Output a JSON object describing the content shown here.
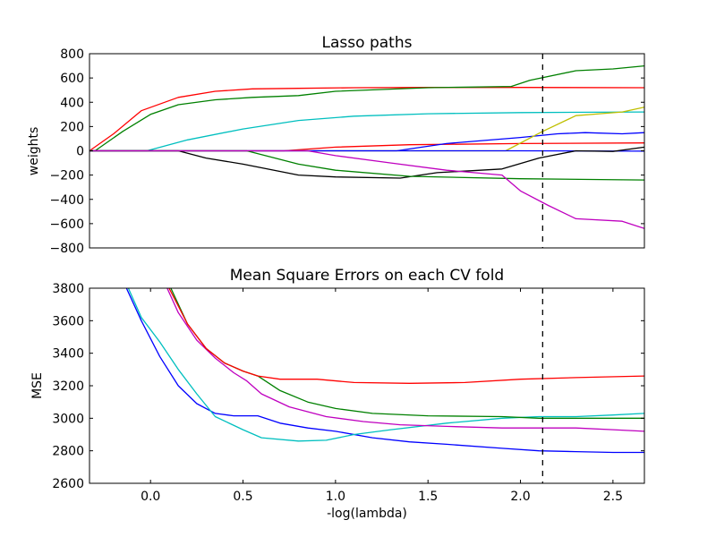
{
  "chart_data": [
    {
      "type": "line",
      "title": "Lasso paths",
      "xlabel": "",
      "ylabel": "weights",
      "xlim": [
        -0.33,
        2.67
      ],
      "ylim": [
        -800,
        800
      ],
      "yticks": [
        800,
        600,
        400,
        200,
        0,
        -200,
        -400,
        -600,
        -800
      ],
      "ytick_labels": [
        "800",
        "600",
        "400",
        "200",
        "0",
        "−200",
        "−400",
        "−600",
        "−800"
      ],
      "vline": {
        "x": 2.12,
        "style": "dashed",
        "color": "#000000"
      },
      "series": [
        {
          "color": "#ff0000",
          "x": [
            -0.33,
            -0.2,
            -0.05,
            0.15,
            0.35,
            0.55,
            0.8,
            1.1,
            1.5,
            2.0,
            2.67
          ],
          "y": [
            0,
            140,
            330,
            440,
            490,
            510,
            515,
            520,
            522,
            522,
            520
          ]
        },
        {
          "color": "#008000",
          "x": [
            -0.3,
            -0.15,
            0.0,
            0.15,
            0.35,
            0.55,
            0.8,
            1.0,
            1.5,
            1.95,
            2.05,
            2.3,
            2.5,
            2.67
          ],
          "y": [
            0,
            160,
            300,
            380,
            420,
            440,
            455,
            490,
            520,
            530,
            580,
            660,
            675,
            700
          ]
        },
        {
          "color": "#00bfbf",
          "x": [
            -0.33,
            -0.02,
            0.2,
            0.5,
            0.8,
            1.1,
            1.5,
            2.0,
            2.67
          ],
          "y": [
            0,
            0,
            90,
            180,
            250,
            285,
            305,
            315,
            320
          ]
        },
        {
          "color": "#ff0000",
          "x": [
            -0.33,
            0.72,
            1.0,
            1.4,
            2.0,
            2.67
          ],
          "y": [
            0,
            0,
            30,
            50,
            60,
            65
          ]
        },
        {
          "color": "#0000ff",
          "x": [
            -0.33,
            1.33,
            1.6,
            2.0,
            2.2,
            2.35,
            2.55,
            2.67
          ],
          "y": [
            0,
            0,
            60,
            110,
            140,
            150,
            140,
            150
          ]
        },
        {
          "color": "#bfbf00",
          "x": [
            -0.33,
            1.92,
            2.12,
            2.3,
            2.55,
            2.67
          ],
          "y": [
            0,
            0,
            160,
            290,
            320,
            360
          ]
        },
        {
          "color": "#0000ff",
          "x": [
            -0.33,
            2.0,
            2.67
          ],
          "y": [
            0,
            0,
            -3
          ]
        },
        {
          "color": "#000000",
          "x": [
            -0.33,
            0.15,
            0.3,
            0.5,
            0.8,
            1.0,
            1.35,
            1.55,
            1.9,
            2.1,
            2.3,
            2.5,
            2.67
          ],
          "y": [
            0,
            0,
            -60,
            -110,
            -200,
            -215,
            -225,
            -180,
            -150,
            -60,
            0,
            -5,
            30
          ]
        },
        {
          "color": "#008000",
          "x": [
            -0.33,
            0.52,
            0.8,
            1.0,
            1.4,
            2.0,
            2.67
          ],
          "y": [
            0,
            0,
            -110,
            -160,
            -210,
            -230,
            -240
          ]
        },
        {
          "color": "#bf00bf",
          "x": [
            -0.33,
            0.85,
            1.0,
            1.3,
            1.6,
            1.9,
            2.0,
            2.15,
            2.3,
            2.55,
            2.67
          ],
          "y": [
            0,
            0,
            -40,
            -100,
            -160,
            -200,
            -330,
            -450,
            -560,
            -580,
            -640
          ]
        }
      ]
    },
    {
      "type": "line",
      "title": "Mean Square Errors on each CV fold",
      "xlabel": "-log(lambda)",
      "ylabel": "MSE",
      "xlim": [
        -0.33,
        2.67
      ],
      "ylim": [
        2600,
        3800
      ],
      "xticks": [
        0.0,
        0.5,
        1.0,
        1.5,
        2.0,
        2.5
      ],
      "xtick_labels": [
        "0.0",
        "0.5",
        "1.0",
        "1.5",
        "2.0",
        "2.5"
      ],
      "yticks": [
        3800,
        3600,
        3400,
        3200,
        3000,
        2800,
        2600
      ],
      "ytick_labels": [
        "3800",
        "3600",
        "3400",
        "3200",
        "3000",
        "2800",
        "2600"
      ],
      "vline": {
        "x": 2.12,
        "style": "dashed",
        "color": "#000000"
      },
      "series": [
        {
          "color": "#0000ff",
          "x": [
            -0.13,
            -0.05,
            0.05,
            0.15,
            0.25,
            0.35,
            0.45,
            0.58,
            0.7,
            0.85,
            1.0,
            1.2,
            1.4,
            1.6,
            1.9,
            2.1,
            2.3,
            2.5,
            2.67
          ],
          "y": [
            3800,
            3600,
            3380,
            3200,
            3090,
            3030,
            3015,
            3015,
            2970,
            2940,
            2920,
            2880,
            2855,
            2840,
            2815,
            2800,
            2795,
            2790,
            2790
          ]
        },
        {
          "color": "#00bfbf",
          "x": [
            -0.12,
            -0.05,
            0.05,
            0.15,
            0.25,
            0.35,
            0.5,
            0.6,
            0.8,
            0.95,
            1.1,
            1.3,
            1.6,
            1.9,
            2.1,
            2.3,
            2.5,
            2.67
          ],
          "y": [
            3800,
            3620,
            3470,
            3300,
            3150,
            3010,
            2930,
            2880,
            2860,
            2865,
            2900,
            2930,
            2970,
            3000,
            3010,
            3010,
            3020,
            3030
          ]
        },
        {
          "color": "#bf00bf",
          "x": [
            0.09,
            0.15,
            0.25,
            0.35,
            0.45,
            0.52,
            0.6,
            0.75,
            0.95,
            1.15,
            1.35,
            1.6,
            1.9,
            2.1,
            2.3,
            2.5,
            2.67
          ],
          "y": [
            3800,
            3650,
            3480,
            3370,
            3280,
            3230,
            3150,
            3070,
            3010,
            2980,
            2960,
            2950,
            2940,
            2940,
            2940,
            2930,
            2920
          ]
        },
        {
          "color": "#008000",
          "x": [
            0.11,
            0.2,
            0.3,
            0.4,
            0.5,
            0.58,
            0.7,
            0.85,
            1.0,
            1.2,
            1.5,
            1.9,
            2.1,
            2.3,
            2.67
          ],
          "y": [
            3800,
            3580,
            3430,
            3340,
            3290,
            3260,
            3170,
            3100,
            3060,
            3030,
            3015,
            3010,
            3000,
            3000,
            3000
          ]
        },
        {
          "color": "#ff0000",
          "x": [
            0.1,
            0.2,
            0.3,
            0.4,
            0.5,
            0.58,
            0.7,
            0.9,
            1.1,
            1.4,
            1.7,
            2.0,
            2.3,
            2.67
          ],
          "y": [
            3800,
            3580,
            3430,
            3340,
            3290,
            3260,
            3240,
            3240,
            3220,
            3215,
            3220,
            3240,
            3250,
            3260
          ]
        }
      ]
    }
  ]
}
